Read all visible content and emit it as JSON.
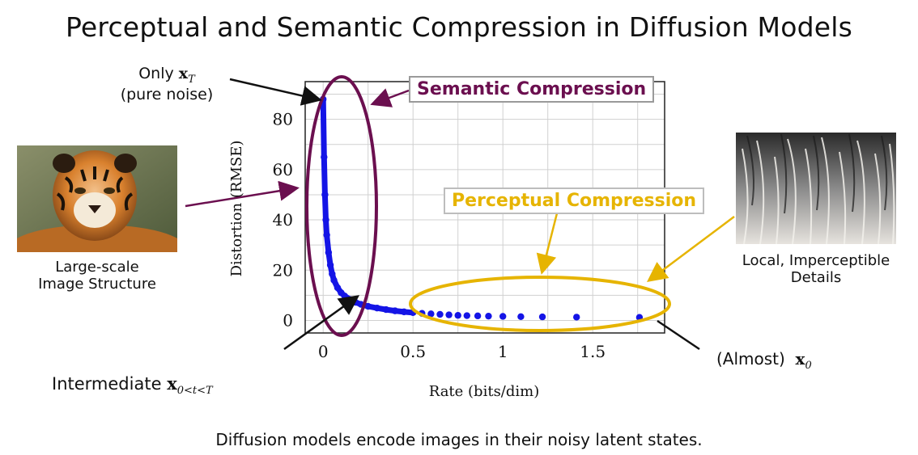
{
  "title": "Perceptual and Semantic Compression in Diffusion Models",
  "caption": "Diffusion models encode images in their noisy latent states.",
  "annotations": {
    "only_xt_line1": "Only",
    "only_xt_math": "x",
    "only_xt_sub": "T",
    "only_xt_line2": "(pure noise)",
    "semantic": "Semantic Compression",
    "perceptual": "Perceptual Compression",
    "large_scale_line1": "Large-scale",
    "large_scale_line2": "Image Structure",
    "local_line1": "Local, Imperceptible",
    "local_line2": "Details",
    "intermediate": "Intermediate",
    "intermediate_math": "x",
    "intermediate_sub": "0<t<T",
    "almost": "(Almost)",
    "almost_math": "x",
    "almost_sub": "0"
  },
  "colors": {
    "points": "#1414e6",
    "semantic": "#6b0f4f",
    "perceptual": "#e6b400",
    "grid": "#d0d0d0"
  },
  "chart_data": {
    "type": "scatter",
    "xlabel": "Rate (bits/dim)",
    "ylabel": "Distortion (RMSE)",
    "xlim": [
      -0.1,
      1.9
    ],
    "ylim": [
      -5,
      95
    ],
    "xticks": [
      0,
      0.5,
      1,
      1.5
    ],
    "xtick_labels": [
      "0",
      "0.5",
      "1",
      "1.5"
    ],
    "yticks": [
      0,
      20,
      40,
      60,
      80
    ],
    "ytick_labels": [
      "0",
      "20",
      "40",
      "60",
      "80"
    ],
    "grid": true,
    "series": [
      {
        "x": [
          0.0,
          0.005,
          0.01,
          0.015,
          0.02,
          0.03,
          0.04,
          0.05,
          0.06,
          0.08,
          0.1,
          0.12,
          0.15,
          0.18,
          0.21,
          0.25,
          0.3,
          0.35,
          0.4,
          0.45,
          0.5,
          0.55,
          0.6,
          0.65,
          0.7,
          0.75,
          0.8,
          0.86,
          0.92,
          1.0,
          1.1,
          1.22,
          1.41,
          1.76
        ],
        "y": [
          88,
          65,
          50,
          40,
          34,
          27,
          22,
          18.5,
          16,
          13,
          11,
          9.7,
          8.3,
          7.2,
          6.4,
          5.6,
          4.9,
          4.3,
          3.8,
          3.4,
          3.1,
          2.8,
          2.6,
          2.4,
          2.2,
          2.0,
          1.9,
          1.8,
          1.7,
          1.6,
          1.5,
          1.4,
          1.3,
          1.2
        ]
      }
    ]
  }
}
